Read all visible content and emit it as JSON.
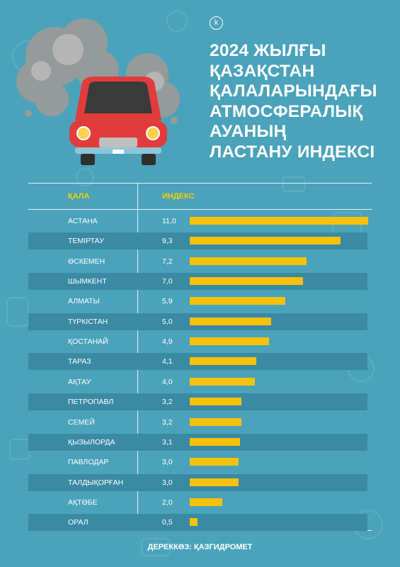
{
  "logo_letter": "k",
  "title_lines": [
    "2024 ЖЫЛҒЫ",
    "ҚАЗАҚСТАН",
    "ҚАЛАЛАРЫНДАҒЫ",
    "АТМОСФЕРАЛЫҚ",
    "АУАНЫҢ",
    "ЛАСТАНУ ИНДЕКСІ"
  ],
  "headers": {
    "city": "ҚАЛА",
    "index": "ИНДЕКС"
  },
  "source": "ДЕРЕККӨЗ: ҚАЗГИДРОМЕТ",
  "colors": {
    "background": "#4aa3bb",
    "bar": "#f8c10a",
    "header": "#f5d000",
    "row_shade": "#3a8aa4",
    "car_body": "#e23b3b"
  },
  "chart_data": {
    "type": "bar",
    "orientation": "horizontal",
    "categories": [
      "АСТАНА",
      "ТЕМІРТАУ",
      "ӨСКЕМЕН",
      "ШЫМКЕНТ",
      "АЛМАТЫ",
      "ТҮРКІСТАН",
      "ҚОСТАНАЙ",
      "ТАРАЗ",
      "АҚТАУ",
      "ПЕТРОПАВЛ",
      "СЕМЕЙ",
      "ҚЫЗЫЛОРДА",
      "ПАВЛОДАР",
      "ТАЛДЫҚОРҒАН",
      "АҚТӨБЕ",
      "ОРАЛ"
    ],
    "values": [
      11.0,
      9.3,
      7.2,
      7.0,
      5.9,
      5.0,
      4.9,
      4.1,
      4.0,
      3.2,
      3.2,
      3.1,
      3.0,
      3.0,
      2.0,
      0.5
    ],
    "value_labels": [
      "11,0",
      "9,3",
      "7,2",
      "7,0",
      "5,9",
      "5,0",
      "4,9",
      "4,1",
      "4,0",
      "3,2",
      "3,2",
      "3,1",
      "3,0",
      "3,0",
      "2,0",
      "0,5"
    ],
    "xlim": [
      0,
      11
    ]
  }
}
